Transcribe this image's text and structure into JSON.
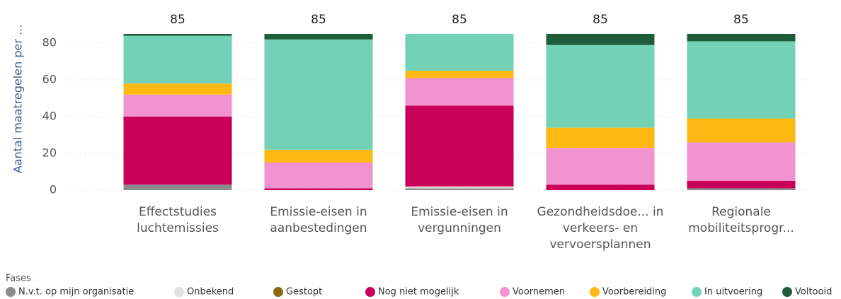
{
  "chart_data": {
    "type": "stacked_bar",
    "y_label": "Aantal maatregelen per ...",
    "categories": [
      "Effectstudies luchtemissies",
      "Emissie-eisen in aanbestedingen",
      "Emissie-eisen in vergunningen",
      "Gezondheidsdoe... in verkeers- en vervoersplannen",
      "Regionale mobiliteitsprogr..."
    ],
    "totals": [
      85,
      85,
      85,
      85,
      85
    ],
    "legend_title": "Fases",
    "series": [
      {
        "name": "N.v.t. op mijn organisatie",
        "color": "#8c8c8c",
        "values": [
          3,
          0,
          1,
          0,
          1
        ]
      },
      {
        "name": "Onbekend",
        "color": "#e0e0e0",
        "values": [
          0,
          0,
          1,
          0,
          0
        ]
      },
      {
        "name": "Gestopt",
        "color": "#8b6a0c",
        "values": [
          0,
          0,
          0,
          0,
          0
        ]
      },
      {
        "name": "Nog niet mogelijk",
        "color": "#c8005a",
        "values": [
          37,
          1,
          44,
          3,
          4
        ]
      },
      {
        "name": "Voornemen",
        "color": "#f093cf",
        "values": [
          12,
          14,
          15,
          20,
          21
        ]
      },
      {
        "name": "Voorbereiding",
        "color": "#fdb913",
        "values": [
          6,
          7,
          4,
          11,
          13
        ]
      },
      {
        "name": "In uitvoering",
        "color": "#73d2b6",
        "values": [
          26,
          60,
          20,
          45,
          42
        ]
      },
      {
        "name": "Voltooid",
        "color": "#1f5c3a",
        "values": [
          1,
          3,
          0,
          6,
          4
        ]
      }
    ],
    "ylim": [
      0,
      85
    ],
    "yticks": [
      0,
      20,
      40,
      60,
      80
    ],
    "grid": true
  }
}
